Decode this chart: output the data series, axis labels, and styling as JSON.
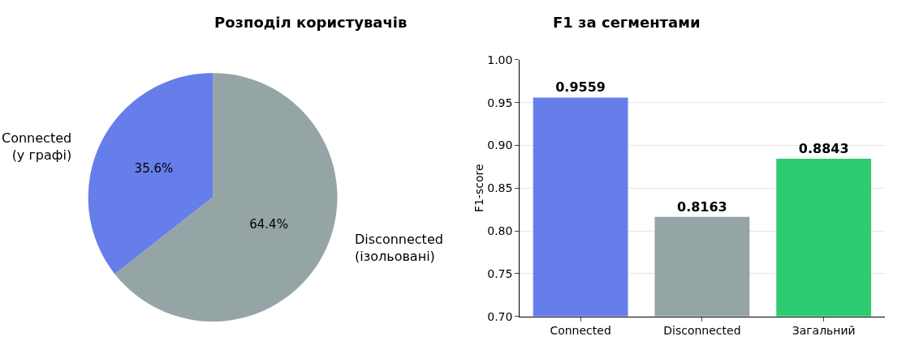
{
  "chart_data": [
    {
      "type": "pie",
      "title": "Розподіл користувачів",
      "categories": [
        "Connected\n(у графі)",
        "Disconnected\n(ізольовані)"
      ],
      "values": [
        35.6,
        64.4
      ],
      "colors": [
        "#667eea",
        "#95a5a6"
      ],
      "value_labels": [
        "35.6%",
        "64.4%"
      ]
    },
    {
      "type": "bar",
      "title": "F1 за сегментами",
      "ylabel": "F1-score",
      "categories": [
        "Connected",
        "Disconnected",
        "Загальний"
      ],
      "values": [
        0.9559,
        0.8163,
        0.8843
      ],
      "colors": [
        "#667eea",
        "#95a5a6",
        "#2ecc71"
      ],
      "data_labels": true,
      "ylim": [
        0.7,
        1.0
      ],
      "yticks": [
        {
          "value": 0.7,
          "label": "0.70"
        },
        {
          "value": 0.75,
          "label": "0.75"
        },
        {
          "value": 0.8,
          "label": "0.80"
        },
        {
          "value": 0.85,
          "label": "0.85"
        },
        {
          "value": 0.9,
          "label": "0.90"
        },
        {
          "value": 0.95,
          "label": "0.95"
        },
        {
          "value": 1.0,
          "label": "1.00"
        }
      ],
      "grid": "y"
    }
  ]
}
